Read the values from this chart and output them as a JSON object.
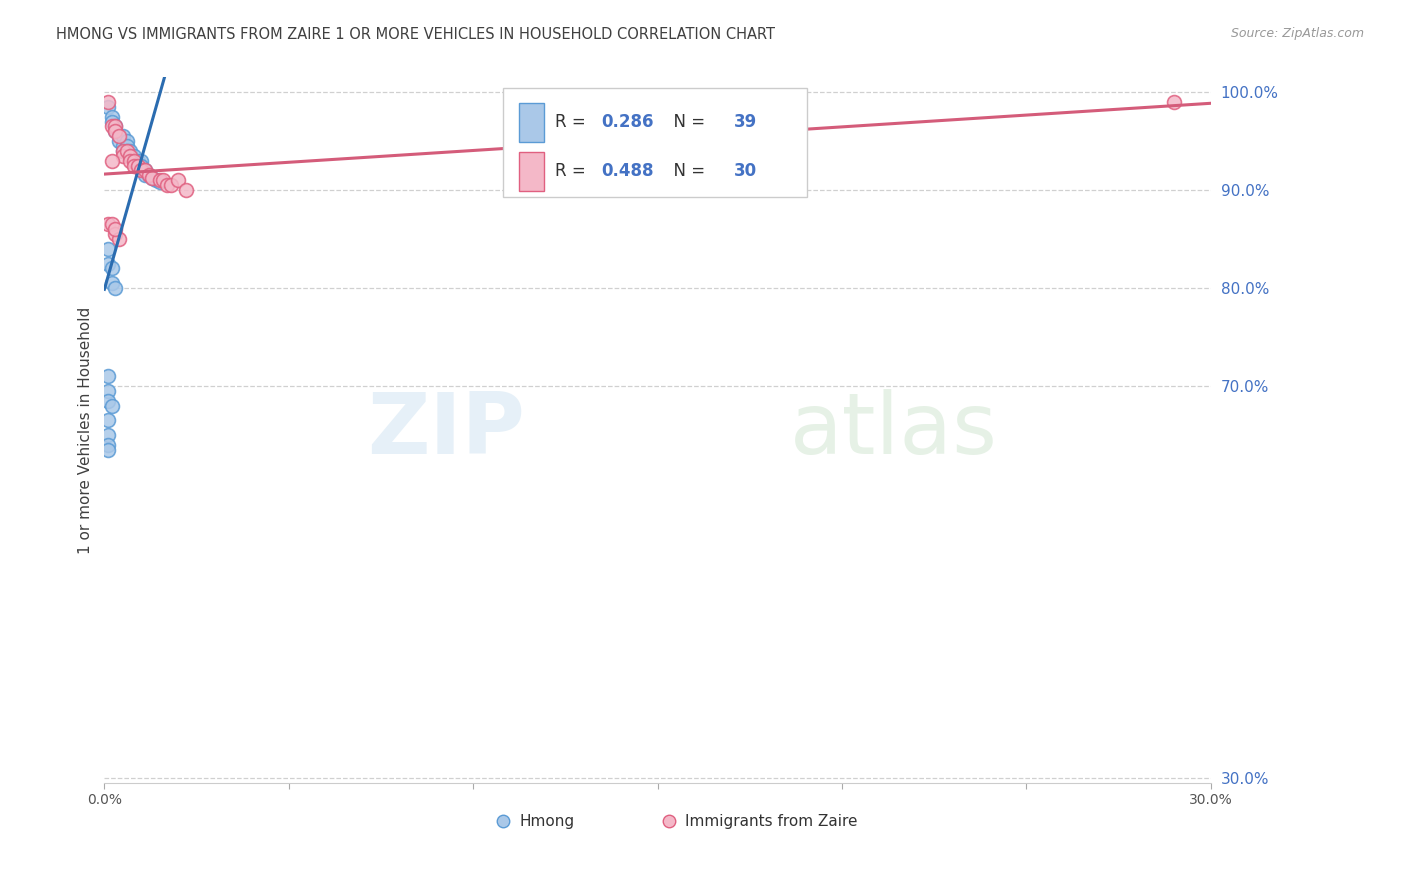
{
  "title": "HMONG VS IMMIGRANTS FROM ZAIRE 1 OR MORE VEHICLES IN HOUSEHOLD CORRELATION CHART",
  "source": "Source: ZipAtlas.com",
  "ylabel": "1 or more Vehicles in Household",
  "ytick_labels": [
    "100.0%",
    "90.0%",
    "80.0%",
    "70.0%",
    "30.0%"
  ],
  "ytick_values": [
    1.0,
    0.9,
    0.8,
    0.7,
    0.3
  ],
  "xtick_labels": [
    "0.0%",
    "",
    "",
    "",
    "",
    "",
    "30.0%"
  ],
  "xtick_values": [
    0.0,
    0.05,
    0.1,
    0.15,
    0.2,
    0.25,
    0.3
  ],
  "legend_hmong": "Hmong",
  "legend_zaire": "Immigrants from Zaire",
  "R_hmong": 0.286,
  "N_hmong": 39,
  "R_zaire": 0.488,
  "N_zaire": 30,
  "color_hmong_fill": "#aac8e8",
  "color_hmong_edge": "#5b9bd5",
  "color_zaire_fill": "#f4b8c8",
  "color_zaire_edge": "#e06080",
  "color_line_hmong": "#2b6cb0",
  "color_line_zaire": "#d45c7a",
  "color_r_value": "#4472C4",
  "color_n_value": "#4472C4",
  "color_axis_right": "#4472C4",
  "color_title": "#404040",
  "background": "#ffffff",
  "watermark_zip": "ZIP",
  "watermark_atlas": "atlas",
  "hmong_x": [
    0.001,
    0.002,
    0.002,
    0.003,
    0.003,
    0.004,
    0.004,
    0.005,
    0.005,
    0.005,
    0.006,
    0.006,
    0.006,
    0.007,
    0.007,
    0.008,
    0.009,
    0.009,
    0.01,
    0.01,
    0.011,
    0.011,
    0.012,
    0.013,
    0.014,
    0.015,
    0.001,
    0.001,
    0.002,
    0.002,
    0.003,
    0.001,
    0.001,
    0.001,
    0.002,
    0.001,
    0.001,
    0.001,
    0.001
  ],
  "hmong_y": [
    0.985,
    0.975,
    0.97,
    0.965,
    0.96,
    0.955,
    0.95,
    0.955,
    0.945,
    0.94,
    0.95,
    0.945,
    0.94,
    0.94,
    0.935,
    0.935,
    0.93,
    0.925,
    0.93,
    0.925,
    0.92,
    0.915,
    0.915,
    0.912,
    0.91,
    0.908,
    0.84,
    0.825,
    0.82,
    0.805,
    0.8,
    0.71,
    0.695,
    0.685,
    0.68,
    0.665,
    0.65,
    0.64,
    0.635
  ],
  "zaire_x": [
    0.001,
    0.002,
    0.003,
    0.003,
    0.004,
    0.005,
    0.005,
    0.006,
    0.007,
    0.007,
    0.008,
    0.008,
    0.009,
    0.01,
    0.011,
    0.012,
    0.013,
    0.015,
    0.016,
    0.017,
    0.018,
    0.02,
    0.022,
    0.001,
    0.002,
    0.003,
    0.004,
    0.002,
    0.003,
    0.29
  ],
  "zaire_y": [
    0.99,
    0.965,
    0.965,
    0.96,
    0.955,
    0.94,
    0.935,
    0.94,
    0.935,
    0.93,
    0.93,
    0.925,
    0.925,
    0.92,
    0.92,
    0.915,
    0.912,
    0.91,
    0.91,
    0.905,
    0.905,
    0.91,
    0.9,
    0.865,
    0.865,
    0.855,
    0.85,
    0.93,
    0.86,
    0.99
  ]
}
